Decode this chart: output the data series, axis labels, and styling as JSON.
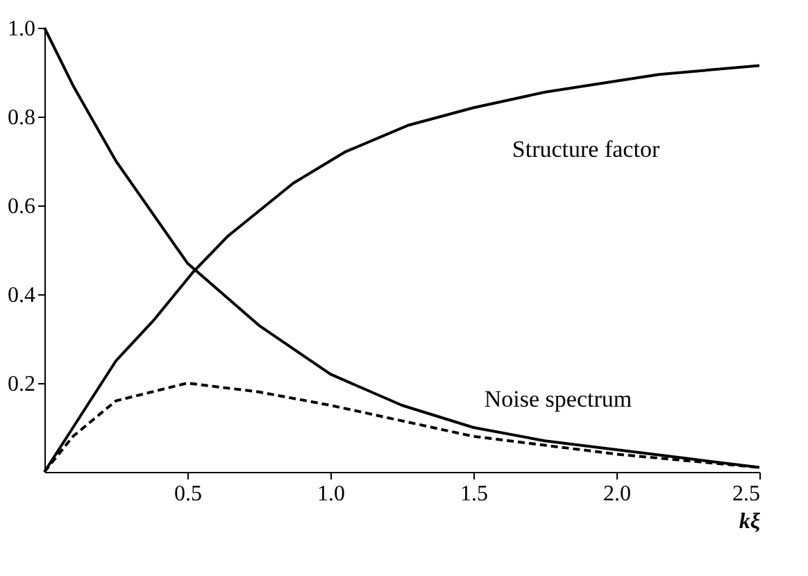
{
  "chart_data": {
    "type": "line",
    "xlabel": "kξ",
    "xlim": [
      0,
      2.5
    ],
    "ylim": [
      0,
      1.0
    ],
    "xticks": [
      0.5,
      {
        "value": 1,
        "label": "1.0"
      },
      1.5,
      {
        "value": 2,
        "label": "2.0"
      },
      2.5
    ],
    "yticks": [
      0.2,
      0.4,
      0.6,
      0.8,
      {
        "value": 1,
        "label": "1.0"
      }
    ],
    "grid": false,
    "marker": "none",
    "series": [
      {
        "color": "#000000",
        "line_style": "solid",
        "x": [
          0,
          0.1,
          0.25,
          0.38,
          0.52,
          0.64,
          0.87,
          1.05,
          1.27,
          1.5,
          1.75,
          2.0,
          2.15,
          2.5
        ],
        "values": [
          0,
          0.1,
          0.25,
          0.34,
          0.45,
          0.53,
          0.65,
          0.72,
          0.78,
          0.82,
          0.855,
          0.88,
          0.895,
          0.915
        ]
      },
      {
        "color": "#000000",
        "line_style": "solid",
        "x": [
          0,
          0.1,
          0.25,
          0.5,
          0.75,
          1.0,
          1.25,
          1.5,
          1.75,
          2.0,
          2.25,
          2.5
        ],
        "values": [
          1,
          0.87,
          0.7,
          0.47,
          0.33,
          0.22,
          0.15,
          0.1,
          0.07,
          0.05,
          0.03,
          0.01
        ]
      },
      {
        "color": "#000000",
        "line_style": "dashed",
        "x": [
          0,
          0.1,
          0.25,
          0.5,
          0.75,
          1.0,
          1.25,
          1.5,
          1.75,
          2.0,
          2.25,
          2.5
        ],
        "values": [
          0,
          0.08,
          0.16,
          0.2,
          0.18,
          0.15,
          0.115,
          0.08,
          0.06,
          0.04,
          0.025,
          0.01
        ]
      }
    ],
    "annotations": [
      "Structure factor",
      "Noise spectrum"
    ]
  }
}
